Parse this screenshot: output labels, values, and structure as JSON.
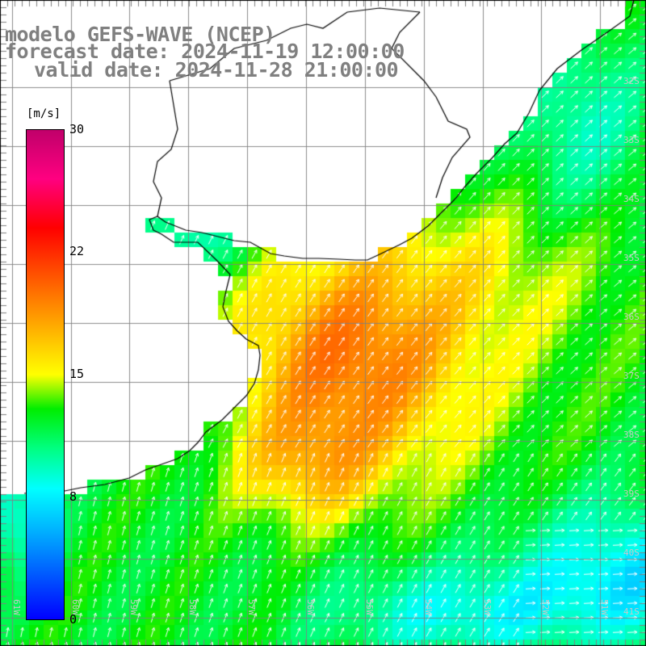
{
  "title": {
    "line1": "modelo GEFS-WAVE (NCEP)",
    "line2": "forecast date: 2024-11-19 12:00:00",
    "line3": "valid date: 2024-11-28 21:00:00"
  },
  "colorbar": {
    "unit": "[m/s]",
    "ticks": [
      "30",
      "22",
      "15",
      "8",
      "0"
    ]
  },
  "grid": {
    "lat_labels": [
      "32S",
      "33S",
      "34S",
      "35S",
      "36S",
      "37S",
      "38S",
      "39S",
      "40S",
      "41S"
    ],
    "lon_labels": [
      "61W",
      "60W",
      "59W",
      "58W",
      "57W",
      "56W",
      "55W",
      "54W",
      "53W",
      "52W",
      "51W"
    ]
  },
  "colors": {
    "background": "#ffffff",
    "land": "#ffffff",
    "coast": "#000000",
    "gridline": "#808080",
    "arrow": "#ffffff",
    "title": "#808080"
  }
}
